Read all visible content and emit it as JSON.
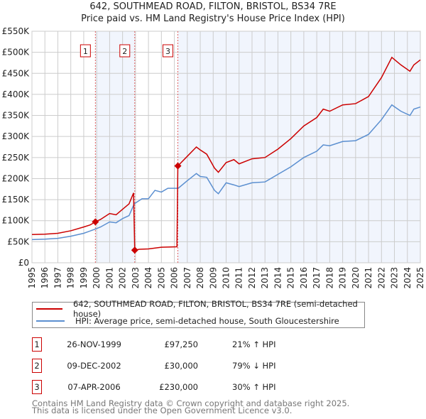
{
  "title": "642, SOUTHMEAD ROAD, FILTON, BRISTOL, BS34 7RE",
  "subtitle": "Price paid vs. HM Land Registry's House Price Index (HPI)",
  "chart_data": {
    "type": "line",
    "title": "642, SOUTHMEAD ROAD, FILTON, BRISTOL, BS34 7RE",
    "subtitle": "Price paid vs. HM Land Registry's House Price Index (HPI)",
    "xlim": [
      1995,
      2025
    ],
    "ylim": [
      0,
      550000
    ],
    "x_ticks": [
      "1995",
      "1996",
      "1997",
      "1998",
      "1999",
      "2000",
      "2001",
      "2002",
      "2003",
      "2004",
      "2005",
      "2006",
      "2007",
      "2008",
      "2009",
      "2010",
      "2011",
      "2012",
      "2013",
      "2014",
      "2015",
      "2016",
      "2017",
      "2018",
      "2019",
      "2020",
      "2021",
      "2022",
      "2023",
      "2024",
      "2025"
    ],
    "y_ticks": [
      {
        "v": 0,
        "label": "£0"
      },
      {
        "v": 50000,
        "label": "£50K"
      },
      {
        "v": 100000,
        "label": "£100K"
      },
      {
        "v": 150000,
        "label": "£150K"
      },
      {
        "v": 200000,
        "label": "£200K"
      },
      {
        "v": 250000,
        "label": "£250K"
      },
      {
        "v": 300000,
        "label": "£300K"
      },
      {
        "v": 350000,
        "label": "£350K"
      },
      {
        "v": 400000,
        "label": "£400K"
      },
      {
        "v": 450000,
        "label": "£450K"
      },
      {
        "v": 500000,
        "label": "£500K"
      },
      {
        "v": 550000,
        "label": "£550K"
      }
    ],
    "grid": true,
    "series": [
      {
        "name": "642, SOUTHMEAD ROAD, FILTON, BRISTOL, BS34 7RE (semi-detached house)",
        "color": "#cc0000",
        "x": [
          1995,
          1996,
          1997,
          1998,
          1999,
          1999.5,
          1999.9,
          2000.3,
          2001,
          2001.5,
          2002,
          2002.5,
          2002.85,
          2002.94,
          2003.3,
          2004,
          2005,
          2006.2,
          2006.27,
          2007,
          2007.7,
          2008,
          2008.5,
          2009.1,
          2009.4,
          2010,
          2010.6,
          2011,
          2012,
          2013,
          2014,
          2015,
          2016,
          2017,
          2017.5,
          2018,
          2019,
          2020,
          2021,
          2022,
          2022.8,
          2023.5,
          2024.2,
          2024.5,
          2025
        ],
        "y": [
          67000,
          68000,
          70000,
          76000,
          85000,
          90000,
          97250,
          103000,
          117000,
          114000,
          127000,
          140000,
          166000,
          30000,
          32000,
          33000,
          37000,
          38000,
          230000,
          253000,
          275000,
          268000,
          258000,
          225000,
          215000,
          238000,
          245000,
          235000,
          247000,
          250000,
          270000,
          295000,
          325000,
          345000,
          365000,
          360000,
          375000,
          378000,
          395000,
          440000,
          488000,
          470000,
          455000,
          470000,
          482000
        ]
      },
      {
        "name": "HPI: Average price, semi-detached house, South Gloucestershire",
        "color": "#5b8fd0",
        "x": [
          1995,
          1996,
          1997,
          1998,
          1999,
          1999.9,
          2000.3,
          2001,
          2001.5,
          2002,
          2002.5,
          2002.9,
          2003.5,
          2004,
          2004.5,
          2005,
          2005.5,
          2006.3,
          2007,
          2007.7,
          2008,
          2008.5,
          2009.1,
          2009.4,
          2010,
          2010.6,
          2011,
          2012,
          2013,
          2014,
          2015,
          2016,
          2017,
          2017.5,
          2018,
          2019,
          2020,
          2021,
          2022,
          2022.8,
          2023.5,
          2024.2,
          2024.5,
          2025
        ],
        "y": [
          55000,
          56000,
          58000,
          63000,
          70000,
          80000,
          85000,
          97000,
          95000,
          105000,
          112000,
          140000,
          152000,
          152000,
          172000,
          168000,
          177000,
          177000,
          195000,
          212000,
          205000,
          203000,
          172000,
          164000,
          190000,
          185000,
          181000,
          190000,
          192000,
          210000,
          228000,
          250000,
          265000,
          280000,
          278000,
          288000,
          290000,
          305000,
          340000,
          375000,
          360000,
          350000,
          365000,
          370000
        ]
      }
    ],
    "sales": [
      {
        "id": "1",
        "x": 1999.9,
        "y": 97250
      },
      {
        "id": "2",
        "x": 2002.94,
        "y": 30000
      },
      {
        "id": "3",
        "x": 2006.27,
        "y": 230000
      }
    ],
    "shaded": [
      [
        1999.9,
        2002.94
      ],
      [
        2006.27,
        2025
      ]
    ],
    "legend_position": "below"
  },
  "legend": [
    {
      "label": "642, SOUTHMEAD ROAD, FILTON, BRISTOL, BS34 7RE (semi-detached house)",
      "color": "#cc0000"
    },
    {
      "label": "HPI: Average price, semi-detached house, South Gloucestershire",
      "color": "#5b8fd0"
    }
  ],
  "transactions": [
    {
      "id": "1",
      "date": "26-NOV-1999",
      "price": "£97,250",
      "hpi": "21% ↑ HPI"
    },
    {
      "id": "2",
      "date": "09-DEC-2002",
      "price": "£30,000",
      "hpi": "79% ↓ HPI"
    },
    {
      "id": "3",
      "date": "07-APR-2006",
      "price": "£230,000",
      "hpi": "30% ↑ HPI"
    }
  ],
  "footer": [
    "Contains HM Land Registry data © Crown copyright and database right 2025.",
    "This data is licensed under the Open Government Licence v3.0."
  ]
}
